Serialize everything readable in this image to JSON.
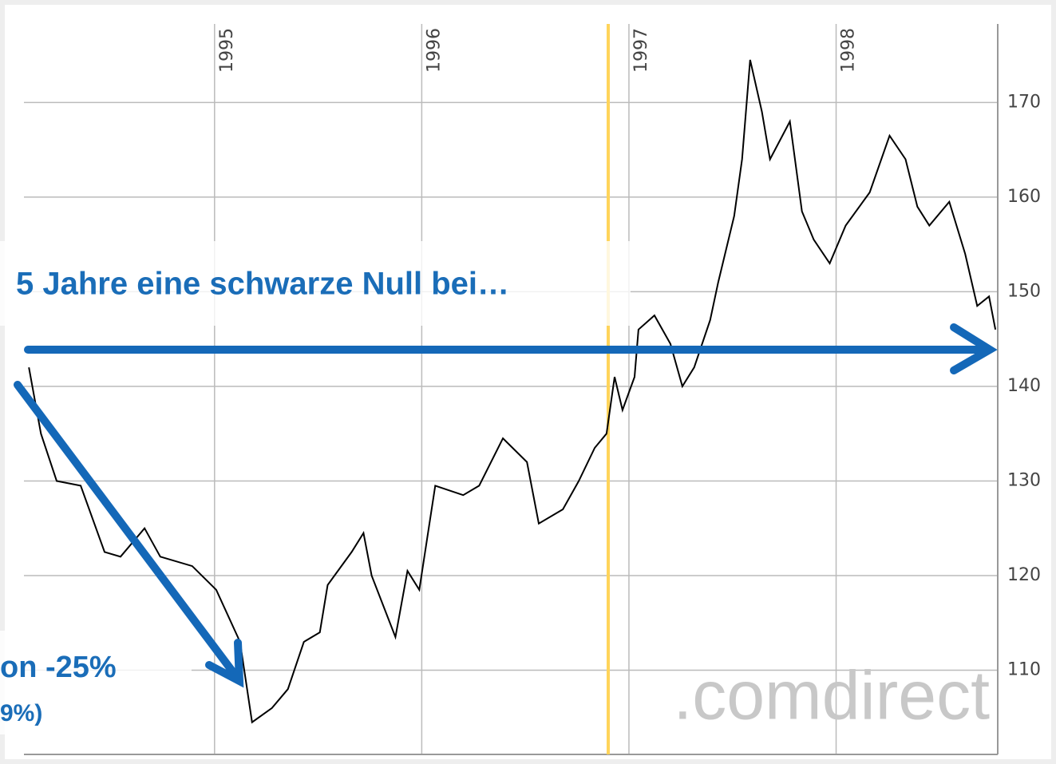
{
  "chart_data": {
    "type": "line",
    "xlim": [
      1994.08,
      1998.78
    ],
    "xticks": [
      1995,
      1996,
      1997,
      1998
    ],
    "ylim": [
      101.1,
      178.3
    ],
    "yticks": [
      110,
      120,
      130,
      140,
      150,
      160,
      170
    ],
    "grid": true,
    "highlight_x": 1996.9,
    "highlight_color": "#ffd45a",
    "series": [
      {
        "color": "#000000",
        "x": [
          1994.104,
          1994.162,
          1994.238,
          1994.354,
          1994.469,
          1994.546,
          1994.662,
          1994.738,
          1994.892,
          1995.008,
          1995.123,
          1995.181,
          1995.277,
          1995.354,
          1995.431,
          1995.508,
          1995.546,
          1995.662,
          1995.719,
          1995.758,
          1995.873,
          1995.931,
          1995.988,
          1996.065,
          1996.2,
          1996.277,
          1996.392,
          1996.508,
          1996.565,
          1996.681,
          1996.758,
          1996.835,
          1996.892,
          1996.931,
          1996.969,
          1997.027,
          1997.046,
          1997.123,
          1997.2,
          1997.258,
          1997.315,
          1997.392,
          1997.431,
          1997.508,
          1997.546,
          1997.585,
          1997.642,
          1997.681,
          1997.777,
          1997.835,
          1997.892,
          1997.969,
          1998.046,
          1998.162,
          1998.258,
          1998.335,
          1998.392,
          1998.45,
          1998.546,
          1998.623,
          1998.681,
          1998.738,
          1998.769
        ],
        "values": [
          142,
          135,
          130,
          129.5,
          122.5,
          122,
          125,
          122,
          121,
          118.5,
          113,
          104.5,
          106,
          108,
          113,
          114,
          119,
          122.5,
          124.5,
          120,
          113.5,
          120.5,
          118.5,
          129.5,
          128.5,
          129.5,
          134.5,
          132,
          125.5,
          127,
          130,
          133.5,
          135,
          141,
          137.5,
          141,
          146,
          147.5,
          144.5,
          140,
          142,
          147,
          151,
          158,
          164,
          174.5,
          169,
          164,
          168,
          158.5,
          155.5,
          153,
          157,
          160.5,
          166.5,
          164,
          159,
          157,
          159.5,
          154,
          148.5,
          149.5,
          146
        ]
      }
    ],
    "annotations": [
      "5 Jahre eine schwarze Null bei…",
      "on -25%",
      "9%)"
    ],
    "watermark": ".comdirect"
  }
}
